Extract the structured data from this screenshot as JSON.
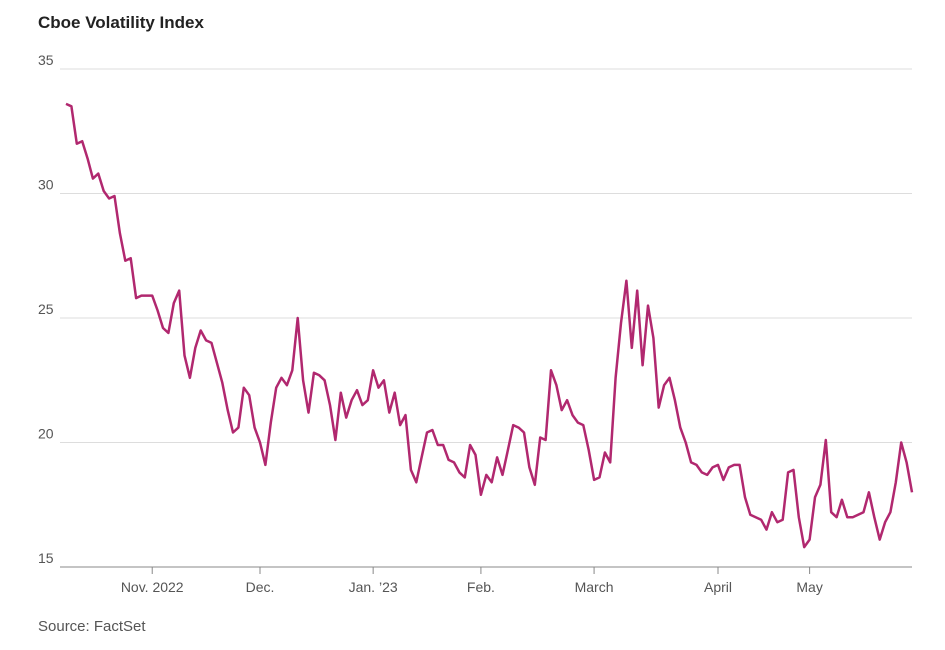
{
  "chart_data": {
    "type": "line",
    "title": "Cboe Volatility Index",
    "source": "Source: FactSet",
    "categories": [
      null,
      null,
      null,
      null,
      null,
      null,
      null,
      null,
      null,
      null,
      null,
      null,
      null,
      null,
      null,
      null,
      "Nov. 2022",
      null,
      null,
      null,
      null,
      null,
      null,
      null,
      null,
      null,
      null,
      null,
      null,
      null,
      null,
      null,
      null,
      null,
      null,
      null,
      "Dec.",
      null,
      null,
      null,
      null,
      null,
      null,
      null,
      null,
      null,
      null,
      null,
      null,
      null,
      null,
      null,
      null,
      null,
      null,
      null,
      null,
      "Jan. ’23",
      null,
      null,
      null,
      null,
      null,
      null,
      null,
      null,
      null,
      null,
      null,
      null,
      null,
      null,
      null,
      null,
      null,
      null,
      null,
      "Feb.",
      null,
      null,
      null,
      null,
      null,
      null,
      null,
      null,
      null,
      null,
      null,
      null,
      null,
      null,
      null,
      null,
      null,
      null,
      null,
      null,
      "March",
      null,
      null,
      null,
      null,
      null,
      null,
      null,
      null,
      null,
      null,
      null,
      null,
      null,
      null,
      null,
      null,
      null,
      null,
      null,
      null,
      null,
      null,
      "April",
      null,
      null,
      null,
      null,
      null,
      null,
      null,
      null,
      null,
      null,
      null,
      null,
      null,
      null,
      null,
      null,
      "May",
      null,
      null,
      null,
      null,
      null,
      null,
      null,
      null,
      null,
      null,
      null,
      null,
      null,
      null,
      null,
      null,
      null,
      null,
      null
    ],
    "series": [
      {
        "name": "Cboe Volatility Index",
        "color": "#b1286f",
        "values": [
          33.6,
          33.5,
          32.0,
          32.1,
          31.4,
          30.6,
          30.8,
          30.1,
          29.8,
          29.9,
          28.4,
          27.3,
          27.4,
          25.8,
          25.9,
          25.9,
          25.9,
          25.3,
          24.6,
          24.4,
          25.6,
          26.1,
          23.5,
          22.6,
          23.8,
          24.5,
          24.1,
          24.0,
          23.2,
          22.4,
          21.3,
          20.4,
          20.6,
          22.2,
          21.9,
          20.6,
          20.0,
          19.1,
          20.8,
          22.2,
          22.6,
          22.3,
          22.9,
          25.0,
          22.5,
          21.2,
          22.8,
          22.7,
          22.5,
          21.5,
          20.1,
          22.0,
          21.0,
          21.7,
          22.1,
          21.5,
          21.7,
          22.9,
          22.2,
          22.5,
          21.2,
          22.0,
          20.7,
          21.1,
          18.9,
          18.4,
          19.4,
          20.4,
          20.5,
          19.9,
          19.9,
          19.3,
          19.2,
          18.8,
          18.6,
          19.9,
          19.5,
          17.9,
          18.7,
          18.4,
          19.4,
          18.7,
          19.7,
          20.7,
          20.6,
          20.4,
          19.0,
          18.3,
          20.2,
          20.1,
          22.9,
          22.3,
          21.3,
          21.7,
          21.1,
          20.8,
          20.7,
          19.7,
          18.5,
          18.6,
          19.6,
          19.2,
          22.6,
          24.8,
          26.5,
          23.8,
          26.1,
          23.1,
          25.5,
          24.2,
          21.4,
          22.3,
          22.6,
          21.7,
          20.6,
          20.0,
          19.2,
          19.1,
          18.8,
          18.7,
          19.0,
          19.1,
          18.5,
          19.0,
          19.1,
          19.1,
          17.8,
          17.1,
          17.0,
          16.9,
          16.5,
          17.2,
          16.8,
          16.9,
          18.8,
          18.9,
          17.0,
          15.8,
          16.1,
          17.8,
          18.3,
          20.1,
          17.2,
          17.0,
          17.7,
          17.0,
          17.0,
          17.1,
          17.2,
          18.0,
          17.0,
          16.1,
          16.8,
          17.2,
          18.4,
          20.0,
          19.2,
          18.0
        ]
      }
    ],
    "ylim": [
      15,
      35
    ],
    "yticks": [
      15,
      20,
      25,
      30,
      35
    ],
    "grid": true
  }
}
